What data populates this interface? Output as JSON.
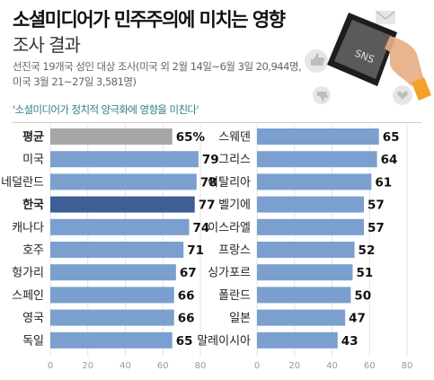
{
  "header": {
    "title": "소셜미디어가 민주주의에 미치는 영향",
    "subtitle": "조사 결과",
    "source": "선진국 19개국 성인 대상 조사(미국 외 2월 14일~6월 3일 20,944명, 미국 3월 21~27일 3,581명)",
    "question": "'소셜미디어가 정치적 양극화에 영향을 미친다'"
  },
  "illustration": {
    "phone_label": "SNS"
  },
  "colors": {
    "bar": "#7b9fce",
    "highlight": "#3d5f96",
    "average": "#a6a6a6",
    "question_text": "#2f7f88"
  },
  "chart_data": [
    {
      "type": "bar",
      "orientation": "horizontal",
      "categories": [
        "평균",
        "미국",
        "네덜란드",
        "한국",
        "캐나다",
        "호주",
        "헝가리",
        "스페인",
        "영국",
        "독일"
      ],
      "values": [
        65,
        79,
        78,
        77,
        74,
        71,
        67,
        66,
        66,
        65
      ],
      "data_labels": [
        "65%",
        "79",
        "78",
        "77",
        "74",
        "71",
        "67",
        "66",
        "66",
        "65"
      ],
      "bold_categories": [
        "평균",
        "한국"
      ],
      "highlight": "한국",
      "average": "평균",
      "xlim": [
        0,
        80
      ],
      "xticks": [
        0,
        20,
        40,
        60,
        80
      ]
    },
    {
      "type": "bar",
      "orientation": "horizontal",
      "categories": [
        "스웨덴",
        "그리스",
        "이탈리아",
        "벨기에",
        "이스라엘",
        "프랑스",
        "싱가포르",
        "폴란드",
        "일본",
        "말레이시아"
      ],
      "values": [
        65,
        64,
        61,
        57,
        57,
        52,
        51,
        50,
        47,
        43
      ],
      "data_labels": [
        "65",
        "64",
        "61",
        "57",
        "57",
        "52",
        "51",
        "50",
        "47",
        "43"
      ],
      "xlim": [
        0,
        80
      ],
      "xticks": [
        0,
        20,
        40,
        60,
        80
      ]
    }
  ]
}
